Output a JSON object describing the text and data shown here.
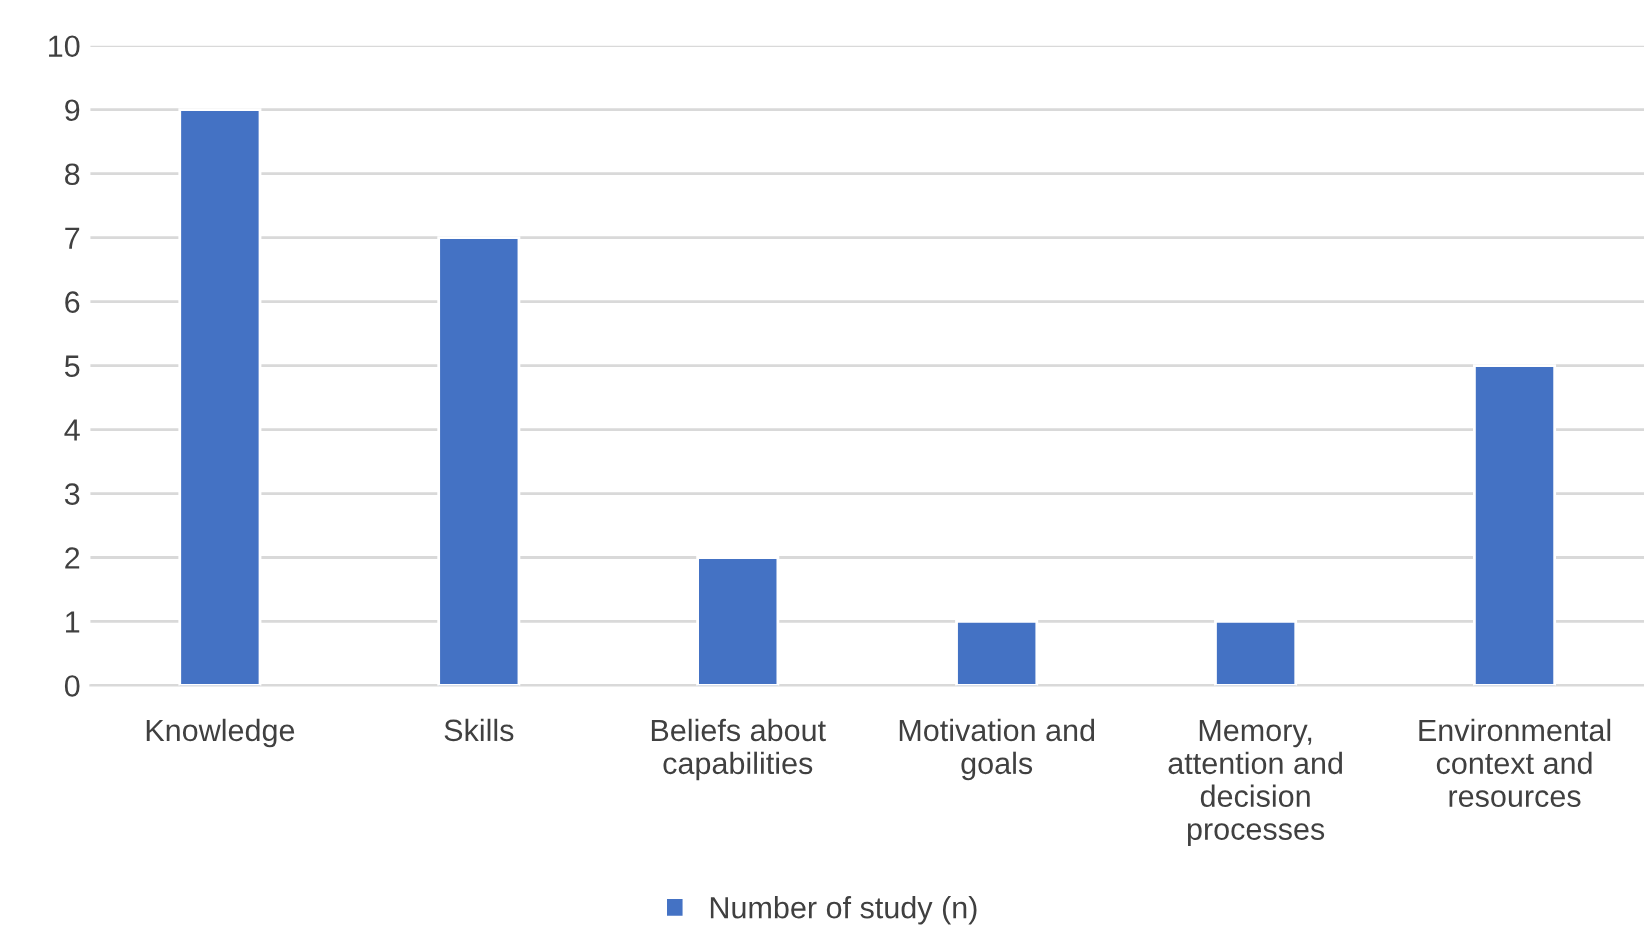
{
  "chart_data": {
    "type": "bar",
    "categories": [
      "Knowledge",
      "Skills",
      "Beliefs about\ncapabilities",
      "Motivation and\ngoals",
      "Memory,\nattention and\ndecision\nprocesses",
      "Environmental\ncontext and\nresources"
    ],
    "series": [
      {
        "name": "Number of study (n)",
        "color": "#4472c4",
        "values": [
          9,
          7,
          2,
          1,
          1,
          5
        ]
      }
    ],
    "ylim": [
      0,
      10
    ],
    "yticks": [
      0,
      1,
      2,
      3,
      4,
      5,
      6,
      7,
      8,
      9,
      10
    ],
    "grid": "y",
    "legend": "bottom"
  }
}
